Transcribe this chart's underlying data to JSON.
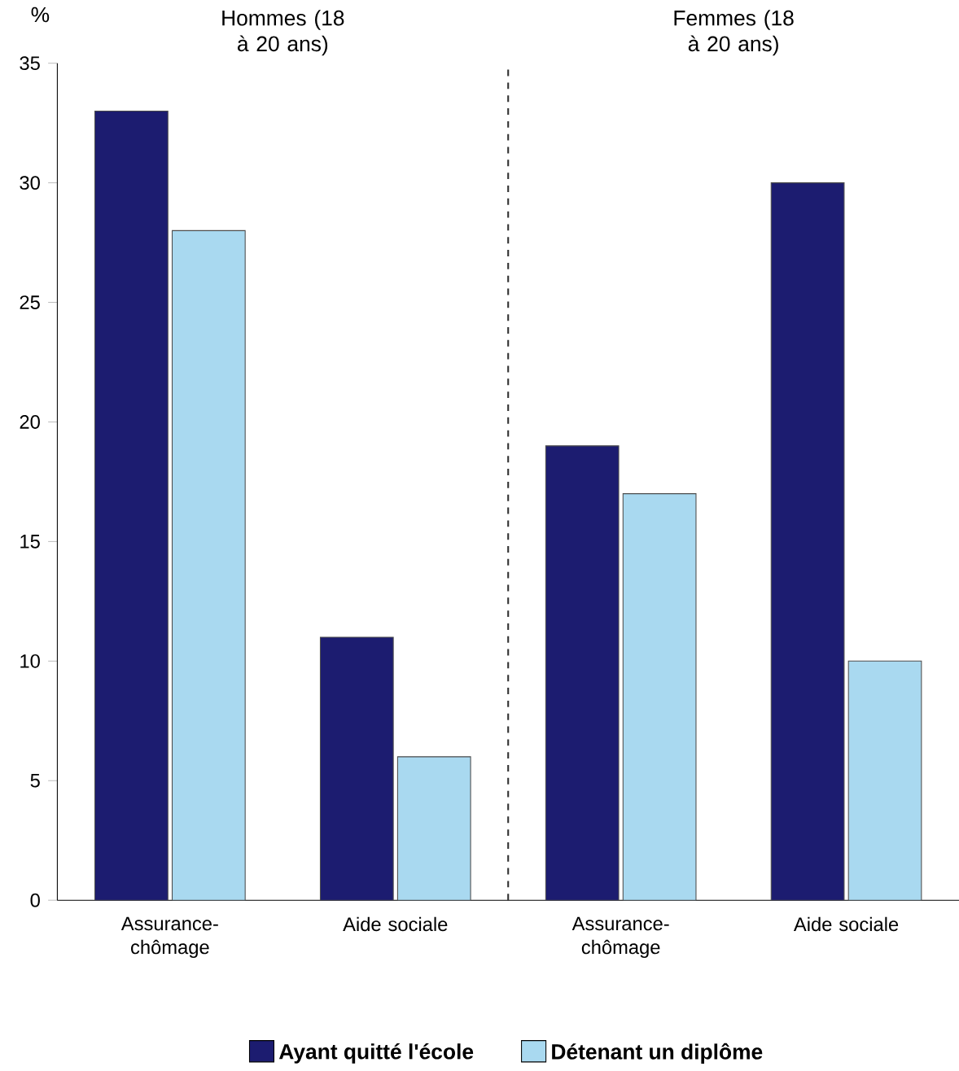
{
  "chart_data": {
    "type": "bar",
    "ylabel": "%",
    "categories": [
      "Assurance-chômage",
      "Aide sociale",
      "Assurance-chômage",
      "Aide sociale"
    ],
    "series": [
      {
        "name": "Ayant quitté l'école",
        "color": "#1c1c70",
        "values": [
          33,
          11,
          19,
          30
        ]
      },
      {
        "name": "Détenant un diplôme",
        "color": "#a9d9f0",
        "values": [
          28,
          6,
          17,
          10
        ]
      }
    ],
    "ylim": [
      0,
      35
    ],
    "yticks": [
      0,
      5,
      10,
      15,
      20,
      25,
      30,
      35
    ],
    "grid": false,
    "legend": "bottom",
    "annotations": [
      "Hommes (18 à 20 ans)",
      "Femmes (18 à 20 ans)"
    ]
  }
}
